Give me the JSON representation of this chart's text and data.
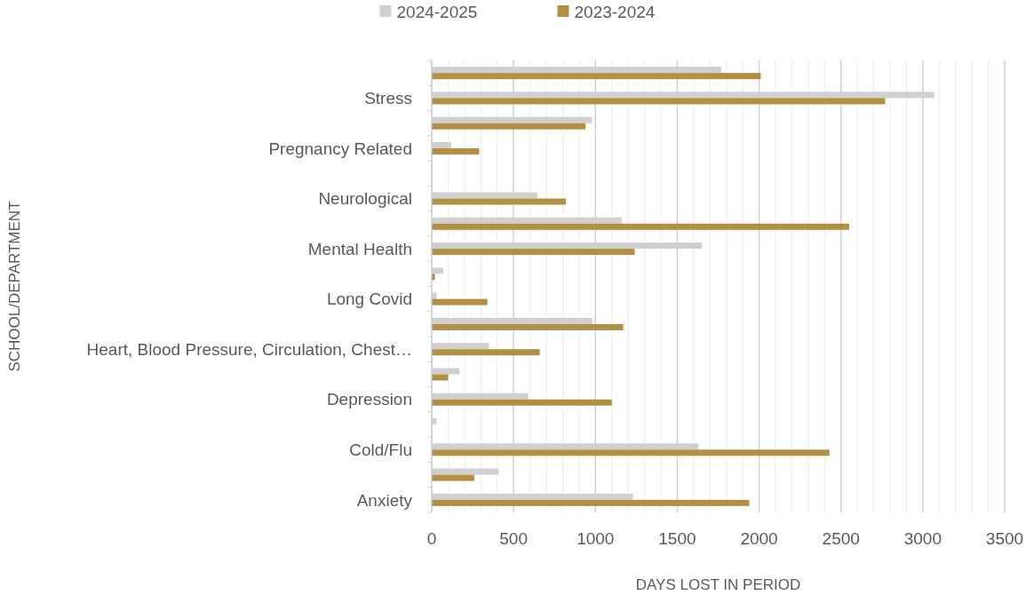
{
  "chart_data": {
    "type": "bar",
    "orientation": "horizontal",
    "xlabel": "DAYS LOST IN PERIOD",
    "ylabel": "SCHOOL/DEPARTMENT",
    "categories": [
      null,
      "Stress",
      null,
      "Pregnancy Related",
      null,
      "Neurological",
      null,
      "Mental Health",
      null,
      "Long Covid",
      null,
      "Heart, Blood Pressure, Circulation, Chest…",
      null,
      "Depression",
      null,
      "Cold/Flu",
      null,
      "Anxiety"
    ],
    "series": [
      {
        "name": "2024-2025",
        "color": "#d0d0d0",
        "values": [
          1770,
          3070,
          980,
          120,
          null,
          645,
          1160,
          1650,
          70,
          30,
          980,
          350,
          170,
          590,
          30,
          1630,
          410,
          1230
        ]
      },
      {
        "name": "2023-2024",
        "color": "#b38f44",
        "values": [
          2010,
          2770,
          940,
          290,
          null,
          820,
          2550,
          1240,
          20,
          340,
          1170,
          660,
          100,
          1100,
          null,
          2430,
          260,
          1940
        ]
      }
    ],
    "xlim": [
      0,
      3500
    ],
    "xticks": [
      0,
      {
        "value": 100,
        "label": null
      },
      {
        "value": 200,
        "label": null
      },
      {
        "value": 300,
        "label": null
      },
      {
        "value": 400,
        "label": null
      },
      500,
      {
        "value": 600,
        "label": null
      },
      {
        "value": 700,
        "label": null
      },
      {
        "value": 800,
        "label": null
      },
      {
        "value": 900,
        "label": null
      },
      1000,
      {
        "value": 1100,
        "label": null
      },
      {
        "value": 1200,
        "label": null
      },
      {
        "value": 1300,
        "label": null
      },
      {
        "value": 1400,
        "label": null
      },
      1500,
      {
        "value": 1600,
        "label": null
      },
      {
        "value": 1700,
        "label": null
      },
      {
        "value": 1800,
        "label": null
      },
      {
        "value": 1900,
        "label": null
      },
      2000,
      {
        "value": 2100,
        "label": null
      },
      {
        "value": 2200,
        "label": null
      },
      {
        "value": 2300,
        "label": null
      },
      {
        "value": 2400,
        "label": null
      },
      2500,
      {
        "value": 2600,
        "label": null
      },
      {
        "value": 2700,
        "label": null
      },
      {
        "value": 2800,
        "label": null
      },
      {
        "value": 2900,
        "label": null
      },
      3000,
      {
        "value": 3100,
        "label": null
      },
      {
        "value": 3200,
        "label": null
      },
      {
        "value": 3300,
        "label": null
      },
      {
        "value": 3400,
        "label": null
      },
      3500
    ],
    "grid": true,
    "legend": "top"
  }
}
